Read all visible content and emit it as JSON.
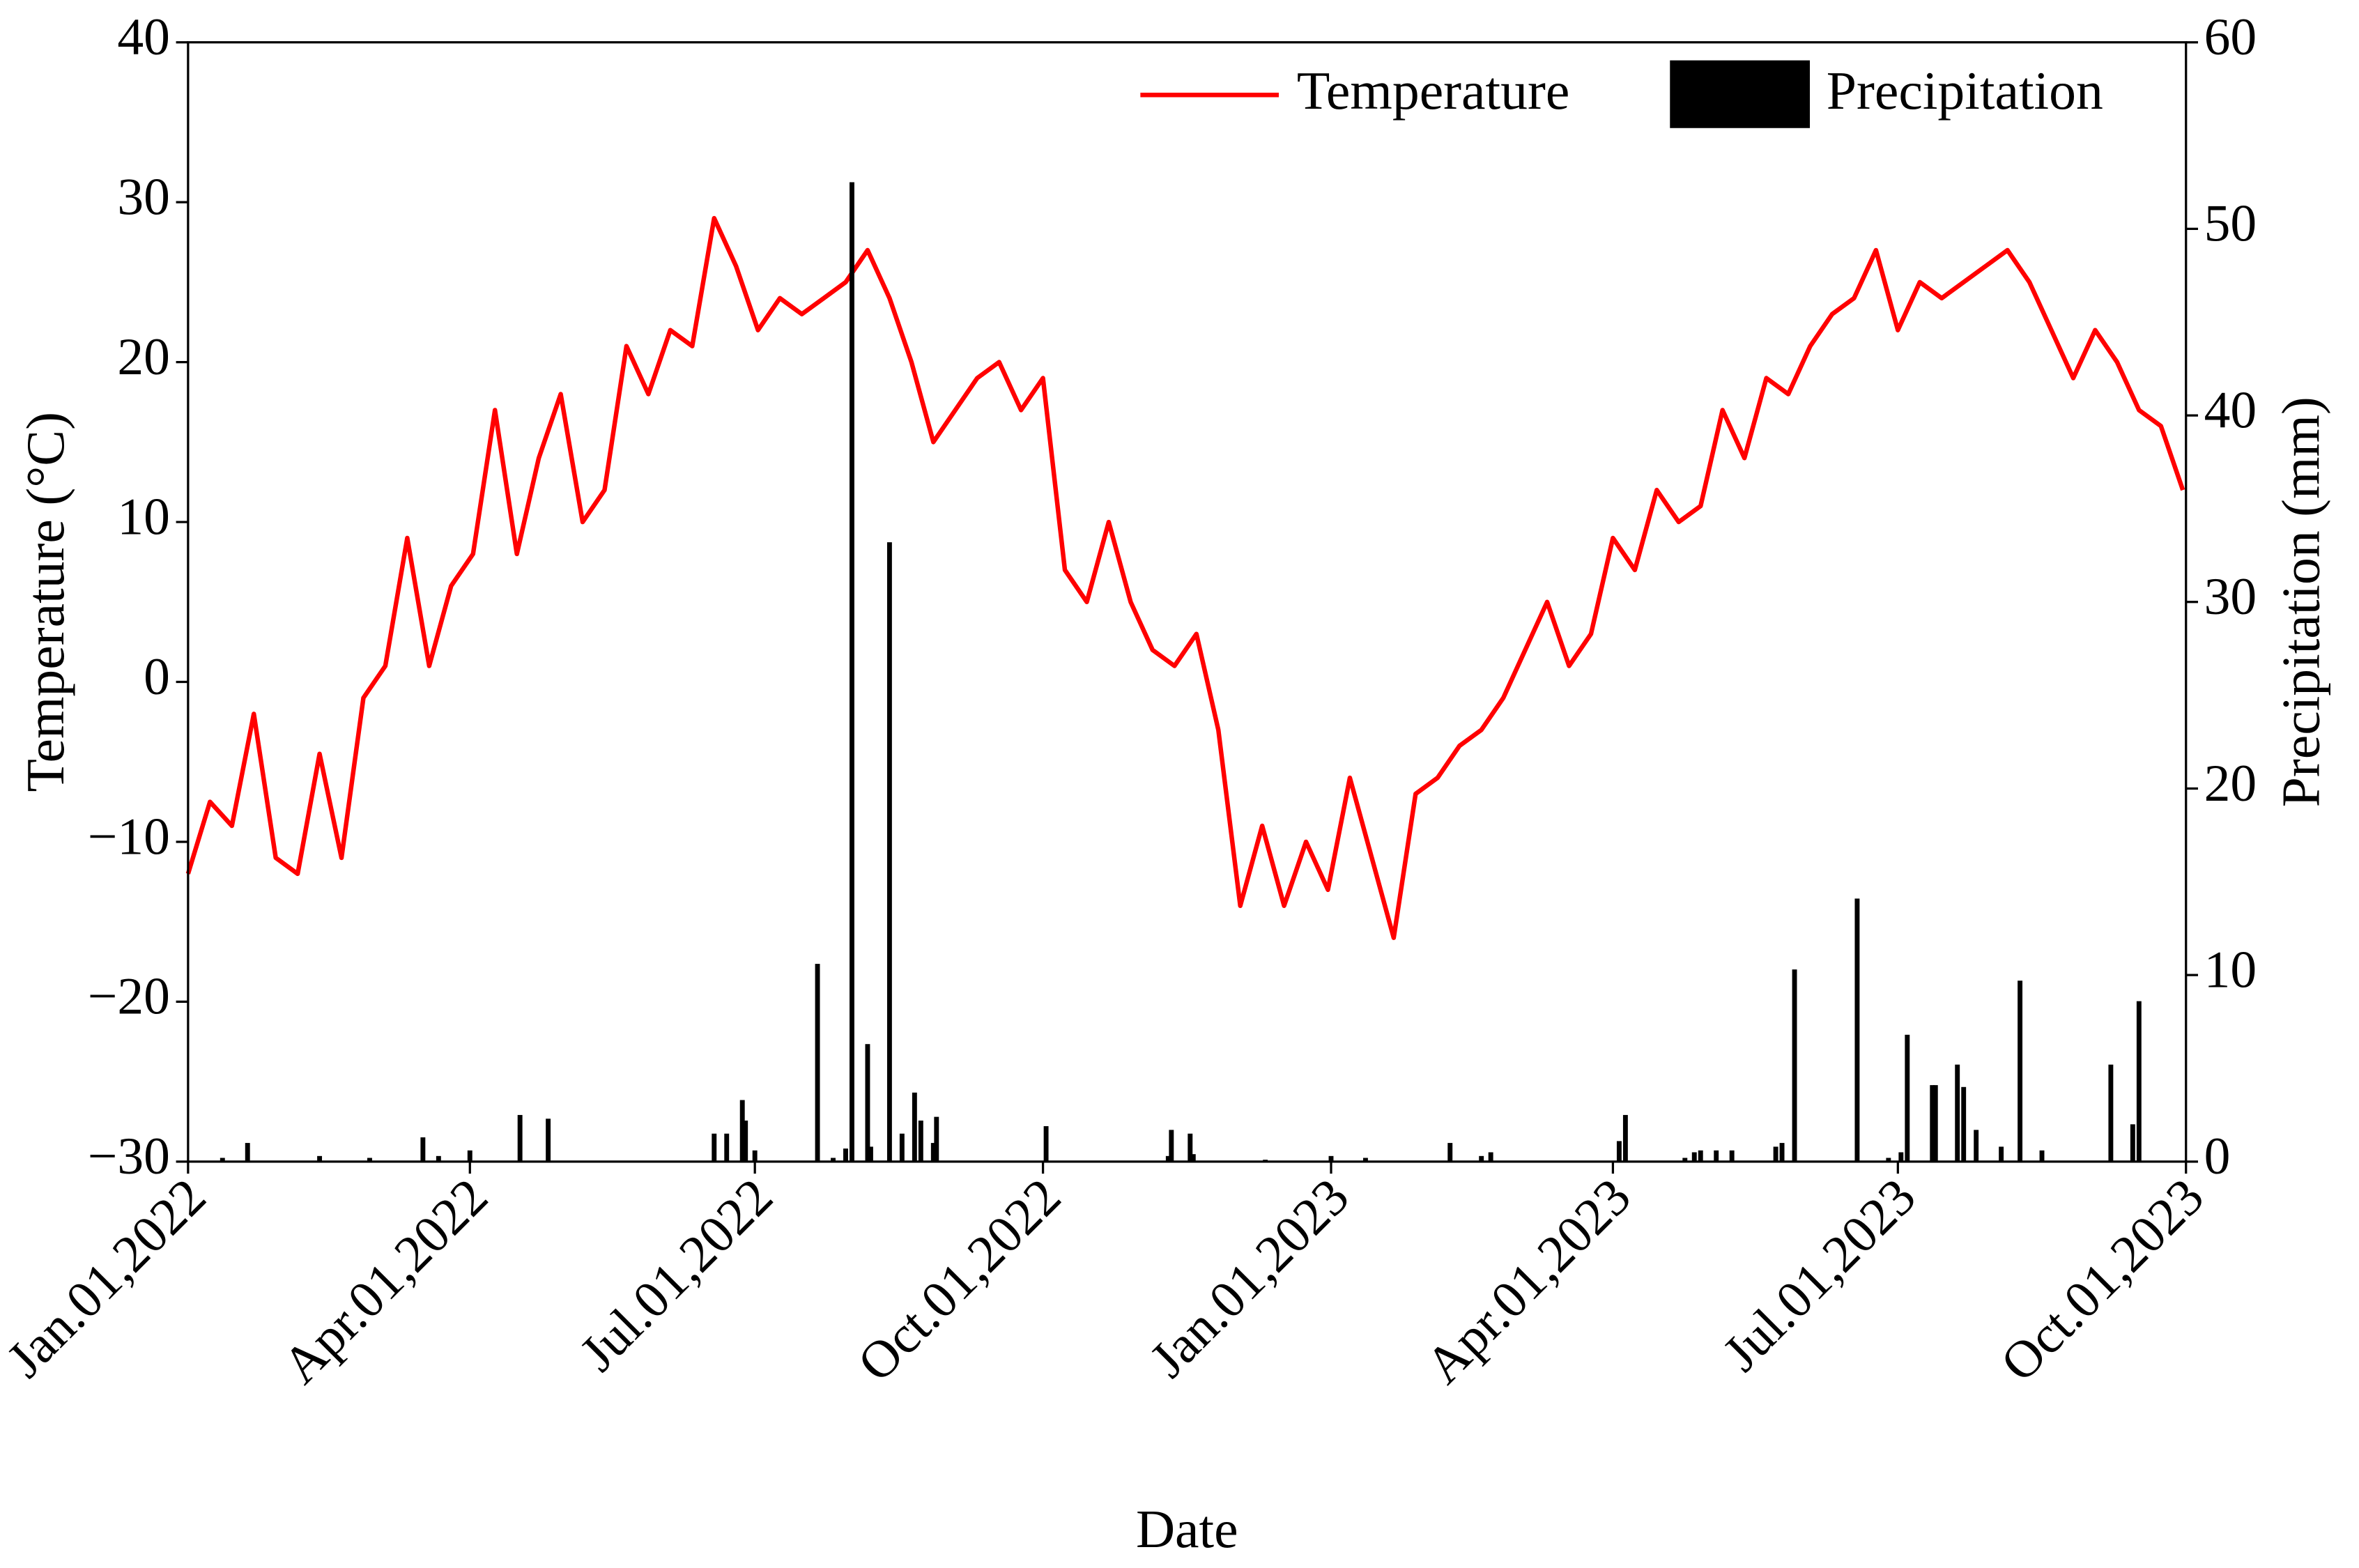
{
  "chart_data": {
    "type": "line",
    "x_label": "Date",
    "y_label": "Temperature (°C)",
    "y2_label": "Precipitation (mm)",
    "legend": "upper right",
    "xlim": [
      "2022-01-01",
      "2023-10-01"
    ],
    "xticks": [
      {
        "value": "2022-01-01",
        "label": "Jan.01,2022"
      },
      {
        "value": "2022-04-01",
        "label": "Apr.01,2022"
      },
      {
        "value": "2022-07-01",
        "label": "Jul.01,2022"
      },
      {
        "value": "2022-10-01",
        "label": "Oct.01,2022"
      },
      {
        "value": "2023-01-01",
        "label": "Jan.01,2023"
      },
      {
        "value": "2023-04-01",
        "label": "Apr.01,2023"
      },
      {
        "value": "2023-07-01",
        "label": "Jul.01,2023"
      },
      {
        "value": "2023-10-01",
        "label": "Oct.01,2023"
      }
    ],
    "ylim": [
      -30,
      40
    ],
    "yticks": [
      {
        "value": -30,
        "label": "−30"
      },
      {
        "value": -20,
        "label": "−20"
      },
      {
        "value": -10,
        "label": "−10"
      },
      0,
      10,
      20,
      30,
      40
    ],
    "y2lim": [
      0,
      60
    ],
    "y2ticks": [
      0,
      10,
      20,
      30,
      40,
      50,
      60
    ],
    "series": [
      {
        "name": "Temperature",
        "type": "line",
        "color": "#ff0000",
        "x": [
          "2022-01-01",
          "2022-01-08",
          "2022-01-15",
          "2022-01-22",
          "2022-01-29",
          "2022-02-05",
          "2022-02-12",
          "2022-02-19",
          "2022-02-26",
          "2022-03-05",
          "2022-03-12",
          "2022-03-19",
          "2022-03-26",
          "2022-04-02",
          "2022-04-09",
          "2022-04-16",
          "2022-04-23",
          "2022-04-30",
          "2022-05-07",
          "2022-05-14",
          "2022-05-21",
          "2022-05-28",
          "2022-06-04",
          "2022-06-11",
          "2022-06-18",
          "2022-06-25",
          "2022-07-02",
          "2022-07-09",
          "2022-07-16",
          "2022-07-23",
          "2022-07-30",
          "2022-08-06",
          "2022-08-13",
          "2022-08-20",
          "2022-08-27",
          "2022-09-03",
          "2022-09-10",
          "2022-09-17",
          "2022-09-24",
          "2022-10-01",
          "2022-10-08",
          "2022-10-15",
          "2022-10-22",
          "2022-10-29",
          "2022-11-05",
          "2022-11-12",
          "2022-11-19",
          "2022-11-26",
          "2022-12-03",
          "2022-12-10",
          "2022-12-17",
          "2022-12-24",
          "2022-12-31",
          "2023-01-07",
          "2023-01-14",
          "2023-01-21",
          "2023-01-28",
          "2023-02-04",
          "2023-02-11",
          "2023-02-18",
          "2023-02-25",
          "2023-03-04",
          "2023-03-11",
          "2023-03-18",
          "2023-03-25",
          "2023-04-01",
          "2023-04-08",
          "2023-04-15",
          "2023-04-22",
          "2023-04-29",
          "2023-05-06",
          "2023-05-13",
          "2023-05-20",
          "2023-05-27",
          "2023-06-03",
          "2023-06-10",
          "2023-06-17",
          "2023-06-24",
          "2023-07-01",
          "2023-07-08",
          "2023-07-15",
          "2023-07-22",
          "2023-07-29",
          "2023-08-05",
          "2023-08-12",
          "2023-08-19",
          "2023-08-26",
          "2023-09-02",
          "2023-09-09",
          "2023-09-16",
          "2023-09-23",
          "2023-09-30"
        ],
        "values": [
          -12,
          -7.5,
          -9,
          -2,
          -11,
          -12,
          -4.5,
          -11,
          -1,
          1,
          9,
          1,
          6,
          8,
          17,
          8,
          14,
          18,
          10,
          12,
          21,
          18,
          22,
          21,
          29,
          26,
          22,
          24,
          23,
          24,
          25,
          27,
          24,
          20,
          15,
          17,
          19,
          20,
          17,
          19,
          7,
          5,
          10,
          5,
          2,
          1,
          3,
          -3,
          -14,
          -9,
          -14,
          -10,
          -13,
          -6,
          -11,
          -16,
          -7,
          -6,
          -4,
          -3,
          -1,
          2,
          5,
          1,
          3,
          9,
          7,
          12,
          10,
          11,
          17,
          14,
          19,
          18,
          21,
          23,
          24,
          27,
          22,
          25,
          24,
          25,
          26,
          27,
          25,
          22,
          19,
          22,
          20,
          17,
          16,
          12
        ]
      },
      {
        "name": "Precipitation",
        "type": "bar",
        "axis": "y2",
        "color": "#000000",
        "x": [
          "2022-01-12",
          "2022-01-20",
          "2022-02-12",
          "2022-02-28",
          "2022-03-17",
          "2022-03-22",
          "2022-04-01",
          "2022-04-17",
          "2022-04-26",
          "2022-06-18",
          "2022-06-22",
          "2022-06-27",
          "2022-06-28",
          "2022-07-01",
          "2022-07-21",
          "2022-07-26",
          "2022-07-30",
          "2022-08-01",
          "2022-08-06",
          "2022-08-07",
          "2022-08-13",
          "2022-08-17",
          "2022-08-21",
          "2022-08-23",
          "2022-08-27",
          "2022-08-28",
          "2022-10-02",
          "2022-11-10",
          "2022-11-11",
          "2022-11-17",
          "2022-11-18",
          "2022-12-11",
          "2023-01-01",
          "2023-01-12",
          "2023-02-08",
          "2023-02-18",
          "2023-02-21",
          "2023-04-03",
          "2023-04-05",
          "2023-04-24",
          "2023-04-27",
          "2023-04-29",
          "2023-05-04",
          "2023-05-09",
          "2023-05-23",
          "2023-05-25",
          "2023-05-29",
          "2023-06-18",
          "2023-06-28",
          "2023-07-02",
          "2023-07-04",
          "2023-07-12",
          "2023-07-13",
          "2023-07-20",
          "2023-07-22",
          "2023-07-26",
          "2023-08-03",
          "2023-08-09",
          "2023-08-16",
          "2023-09-07",
          "2023-09-14",
          "2023-09-16"
        ],
        "values": [
          0.2,
          1.0,
          0.3,
          0.2,
          1.3,
          0.3,
          0.6,
          2.5,
          2.3,
          1.5,
          1.5,
          3.3,
          2.2,
          0.6,
          10.6,
          0.2,
          0.7,
          52.5,
          6.3,
          0.8,
          33.2,
          1.5,
          3.7,
          2.2,
          1.0,
          2.4,
          1.9,
          0.3,
          1.7,
          1.5,
          0.4,
          0.1,
          0.3,
          0.2,
          1.0,
          0.3,
          0.5,
          1.1,
          2.5,
          0.2,
          0.5,
          0.6,
          0.6,
          0.6,
          0.8,
          1.0,
          10.3,
          14.1,
          0.2,
          0.5,
          6.8,
          4.1,
          4.1,
          5.2,
          4.0,
          1.7,
          0.8,
          9.7,
          0.6,
          5.2,
          2.0,
          8.6
        ]
      }
    ]
  }
}
